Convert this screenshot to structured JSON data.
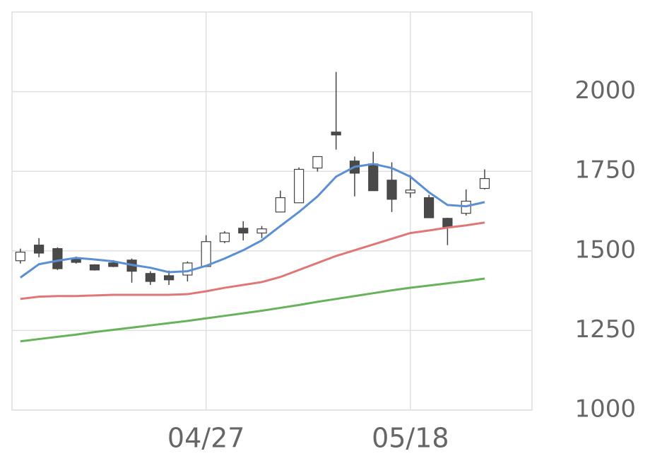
{
  "chart_data": {
    "type": "candlestick",
    "categories": [
      null,
      null,
      null,
      null,
      null,
      null,
      null,
      null,
      null,
      null,
      "04/27",
      null,
      null,
      null,
      null,
      null,
      null,
      null,
      null,
      null,
      null,
      "05/18",
      null,
      null,
      null,
      null
    ],
    "open": [
      1469,
      1518,
      1507,
      1473,
      1456,
      1462,
      1471,
      1429,
      1422,
      1424,
      1451,
      1529,
      1571,
      1556,
      1622,
      1651,
      1760,
      1873,
      1782,
      1773,
      1722,
      1682,
      1667,
      1602,
      1618,
      1696
    ],
    "high": [
      1507,
      1540,
      1511,
      1482,
      1458,
      1471,
      1476,
      1436,
      1438,
      1467,
      1549,
      1562,
      1593,
      1578,
      1689,
      1762,
      1796,
      2062,
      1796,
      1811,
      1778,
      1738,
      1676,
      1604,
      1693,
      1756
    ],
    "low": [
      1460,
      1480,
      1440,
      1460,
      1438,
      1449,
      1400,
      1393,
      1393,
      1404,
      1449,
      1524,
      1533,
      1540,
      1622,
      1651,
      1749,
      1818,
      1671,
      1689,
      1622,
      1667,
      1604,
      1518,
      1611,
      1693
    ],
    "close": [
      1496,
      1493,
      1444,
      1464,
      1440,
      1451,
      1436,
      1404,
      1409,
      1462,
      1529,
      1556,
      1556,
      1569,
      1667,
      1756,
      1796,
      1864,
      1744,
      1689,
      1662,
      1691,
      1604,
      1573,
      1656,
      1727
    ],
    "up_color": "#ffffff",
    "down_color": "#4a4a4a",
    "edge_color": "#444444",
    "lines": [
      {
        "color": "#5b8fd4",
        "values": [
          1416,
          1458,
          1469,
          1478,
          1473,
          1467,
          1456,
          1447,
          1433,
          1436,
          1453,
          1476,
          1502,
          1533,
          1578,
          1622,
          1671,
          1733,
          1764,
          1773,
          1760,
          1733,
          1684,
          1644,
          1640,
          1653
        ]
      },
      {
        "color": "#e07777",
        "values": [
          1349,
          1356,
          1358,
          1358,
          1360,
          1362,
          1362,
          1362,
          1362,
          1364,
          1373,
          1384,
          1393,
          1402,
          1418,
          1440,
          1462,
          1484,
          1502,
          1520,
          1538,
          1556,
          1564,
          1573,
          1580,
          1589
        ]
      },
      {
        "color": "#66b35a",
        "values": [
          1216,
          1223,
          1230,
          1237,
          1245,
          1252,
          1259,
          1266,
          1273,
          1280,
          1288,
          1296,
          1304,
          1312,
          1321,
          1330,
          1340,
          1349,
          1358,
          1367,
          1376,
          1384,
          1391,
          1398,
          1405,
          1413
        ]
      }
    ],
    "ylim": [
      1000,
      2250
    ],
    "yticks": [
      1000,
      1250,
      1500,
      1750,
      2000
    ],
    "grid": true
  }
}
